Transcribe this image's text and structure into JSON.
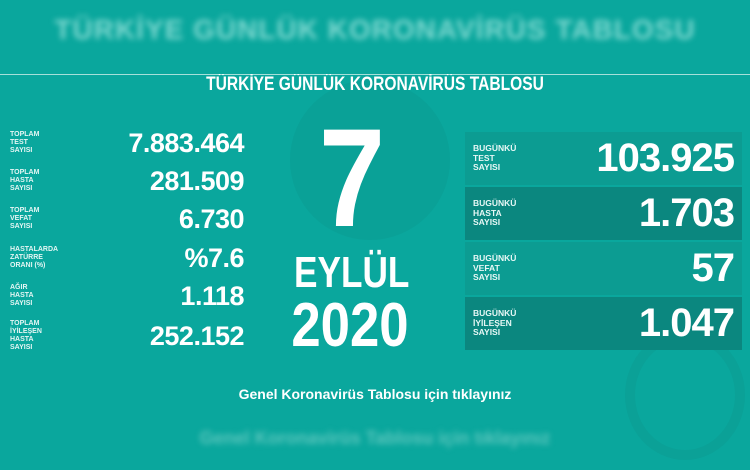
{
  "header": {
    "blurred_title": "TÜRKİYE GÜNLÜK KORONAVİRÜS TABLOSU",
    "title": "TÜRKİYE GÜNLÜK KORONAVİRÜS TABLOSU"
  },
  "totals": [
    {
      "label": "TOPLAM\nTEST\nSAYISI",
      "value": "7.883.464"
    },
    {
      "label": "TOPLAM\nHASTA\nSAYISI",
      "value": "281.509"
    },
    {
      "label": "TOPLAM\nVEFAT\nSAYISI",
      "value": "6.730"
    },
    {
      "label": "HASTALARDA\nZATÜRRE\nORANI (%)",
      "value": "%7.6"
    },
    {
      "label": "AĞIR\nHASTA\nSAYISI",
      "value": "1.118"
    },
    {
      "label": "TOPLAM\nİYİLEŞEN\nHASTA\nSAYISI",
      "value": "252.152"
    }
  ],
  "date": {
    "day": "7",
    "month": "EYLÜL",
    "year": "2020"
  },
  "today": [
    {
      "label": "BUGÜNKÜ\nTEST\nSAYISI",
      "value": "103.925"
    },
    {
      "label": "BUGÜNKÜ\nHASTA\nSAYISI",
      "value": "1.703"
    },
    {
      "label": "BUGÜNKÜ\nVEFAT\nSAYISI",
      "value": "57"
    },
    {
      "label": "BUGÜNKÜ\nİYİLEŞEN\nSAYISI",
      "value": "1.047"
    }
  ],
  "footer": {
    "link": "Genel Koronavirüs Tablosu için tıklayınız",
    "blurred_link": "Genel Koronavirüs Tablosu için tıklayınız"
  },
  "colors": {
    "background": "#0aa79d",
    "box": "#0c9c92",
    "box_dark": "#0b877f"
  }
}
